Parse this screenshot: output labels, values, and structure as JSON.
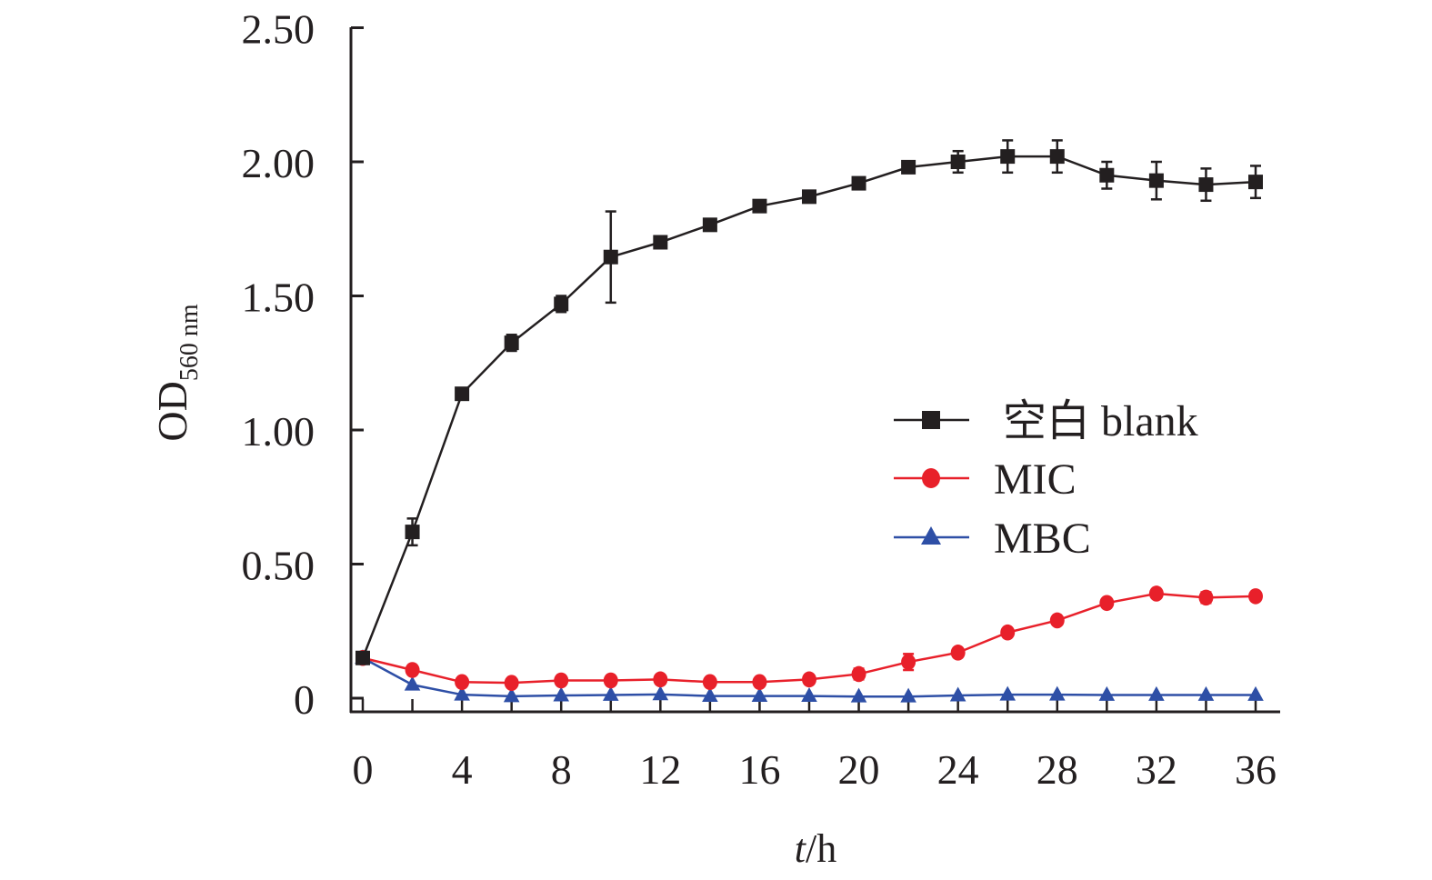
{
  "chart_data": {
    "type": "line",
    "title": "",
    "xlabel_italic": "t",
    "xlabel_unit": "/h",
    "ylabel_main": "OD",
    "ylabel_sub": "560 nm",
    "xlim": [
      0,
      36
    ],
    "ylim": [
      0,
      2.5
    ],
    "xticks": [
      0,
      4,
      8,
      12,
      16,
      20,
      24,
      28,
      32,
      36
    ],
    "yticks": [
      {
        "value": 0,
        "label": "0"
      },
      {
        "value": 0.5,
        "label": "0.50"
      },
      {
        "value": 1.0,
        "label": "1.00"
      },
      {
        "value": 1.5,
        "label": "1.50"
      },
      {
        "value": 2.0,
        "label": "2.00"
      },
      {
        "value": 2.5,
        "label": "2.50"
      }
    ],
    "grid": false,
    "legend_position": "center-right",
    "x": [
      0,
      2,
      4,
      6,
      8,
      10,
      12,
      14,
      16,
      18,
      20,
      22,
      24,
      26,
      28,
      30,
      32,
      34,
      36
    ],
    "series": [
      {
        "name": "空白 blank",
        "color": "#231f20",
        "marker": "square",
        "values": [
          0.15,
          0.62,
          1.135,
          1.325,
          1.47,
          1.645,
          1.7,
          1.765,
          1.835,
          1.87,
          1.92,
          1.98,
          2.0,
          2.02,
          2.02,
          1.95,
          1.93,
          1.915,
          1.925
        ],
        "errors": [
          0.01,
          0.05,
          0.01,
          0.03,
          0.03,
          0.17,
          0.02,
          0.01,
          0.01,
          0.01,
          0.01,
          0.02,
          0.04,
          0.06,
          0.06,
          0.05,
          0.07,
          0.06,
          0.06
        ]
      },
      {
        "name": "MIC",
        "color": "#e8202a",
        "marker": "circle",
        "values": [
          0.15,
          0.105,
          0.06,
          0.057,
          0.066,
          0.066,
          0.07,
          0.06,
          0.06,
          0.07,
          0.09,
          0.135,
          0.17,
          0.245,
          0.29,
          0.355,
          0.39,
          0.375,
          0.38
        ],
        "errors": [
          0,
          0,
          0,
          0,
          0,
          0,
          0,
          0,
          0,
          0,
          0.02,
          0.03,
          0,
          0,
          0,
          0,
          0,
          0.02,
          0.01
        ]
      },
      {
        "name": "MBC",
        "color": "#2e4fa6",
        "marker": "triangle",
        "values": [
          0.15,
          0.05,
          0.013,
          0.007,
          0.01,
          0.012,
          0.014,
          0.008,
          0.008,
          0.008,
          0.006,
          0.006,
          0.01,
          0.013,
          0.013,
          0.012,
          0.012,
          0.012,
          0.012
        ],
        "errors": [
          0,
          0,
          0,
          0,
          0,
          0,
          0,
          0,
          0,
          0,
          0,
          0,
          0,
          0,
          0,
          0,
          0,
          0,
          0
        ]
      }
    ]
  }
}
